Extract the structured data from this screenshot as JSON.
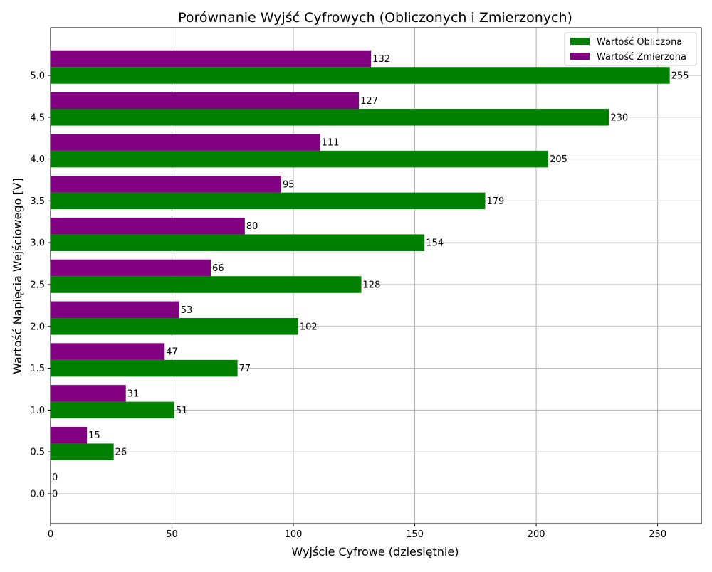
{
  "chart_data": {
    "type": "bar",
    "orientation": "horizontal",
    "title": "Porównanie Wyjść Cyfrowych (Obliczonych i Zmierzonych)",
    "xlabel": "Wyjście Cyfrowe (dziesiętnie)",
    "ylabel": "Wartość Napięcia Wejściowego [V]",
    "categories": [
      "0.0",
      "0.5",
      "1.0",
      "1.5",
      "2.0",
      "2.5",
      "3.0",
      "3.5",
      "4.0",
      "4.5",
      "5.0"
    ],
    "series": [
      {
        "name": "Wartość Obliczona",
        "color": "#008000",
        "values": [
          0,
          26,
          51,
          77,
          102,
          128,
          154,
          179,
          205,
          230,
          255
        ]
      },
      {
        "name": "Wartość Zmierzona",
        "color": "#800080",
        "values": [
          0,
          15,
          31,
          47,
          53,
          66,
          80,
          95,
          111,
          127,
          132
        ]
      }
    ],
    "xlim": [
      0,
      268
    ],
    "xticks": [
      "0",
      "50",
      "100",
      "150",
      "200",
      "250"
    ],
    "grid": true,
    "legend_position": "top-right"
  }
}
